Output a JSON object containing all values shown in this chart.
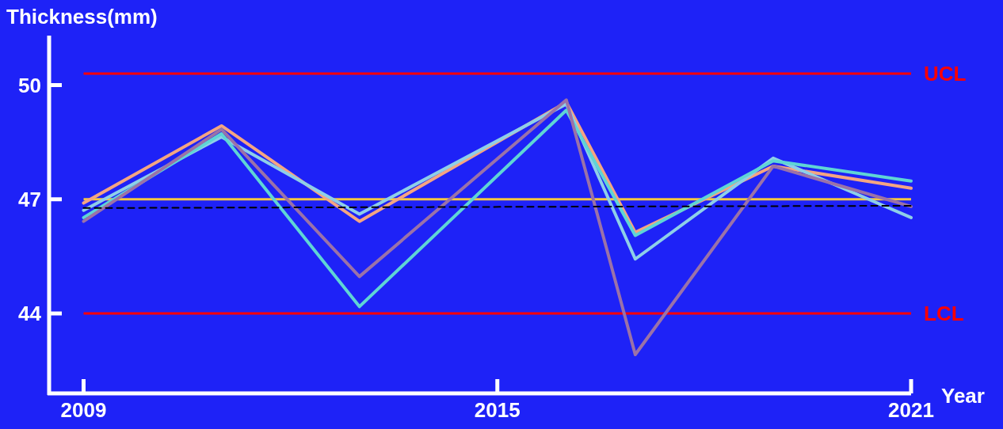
{
  "chart_data": {
    "type": "line",
    "xlabel": "Year",
    "ylabel": "Thickness(mm)",
    "x": [
      2009,
      2011,
      2013,
      2016,
      2017,
      2019,
      2021
    ],
    "xlim": [
      2008.5,
      2021
    ],
    "xticks": [
      2009,
      2015,
      2021
    ],
    "ylim": [
      41.9,
      51.3
    ],
    "yticks": [
      44,
      47,
      50
    ],
    "grid": false,
    "marker": "none",
    "line_style": "solid",
    "series": [
      {
        "color": "#f4a582",
        "values": [
          46.9,
          48.93,
          46.42,
          49.55,
          46.13,
          47.87,
          47.29
        ]
      },
      {
        "color": "#8ecfe8",
        "values": [
          46.71,
          48.64,
          46.61,
          49.5,
          45.43,
          48.08,
          46.52
        ]
      },
      {
        "color": "#5fd5d5",
        "values": [
          46.52,
          48.72,
          44.18,
          49.34,
          46.05,
          48.01,
          47.48
        ]
      },
      {
        "color": "#9b72a8",
        "values": [
          46.42,
          48.84,
          44.97,
          49.61,
          42.92,
          47.87,
          46.81
        ]
      },
      {
        "type": "line",
        "color": "#000000",
        "line_style": "dashed",
        "x": [
          2009,
          2021
        ],
        "values": [
          46.77,
          46.83
        ]
      }
    ],
    "ref_lines": [
      {
        "axis": "y",
        "value": 50.3,
        "label": "UCL",
        "color": "#ff0000"
      },
      {
        "axis": "y",
        "value": 47,
        "label": null,
        "color": "#f5c842"
      },
      {
        "axis": "y",
        "value": 44,
        "label": "LCL",
        "color": "#ff0000"
      }
    ]
  }
}
